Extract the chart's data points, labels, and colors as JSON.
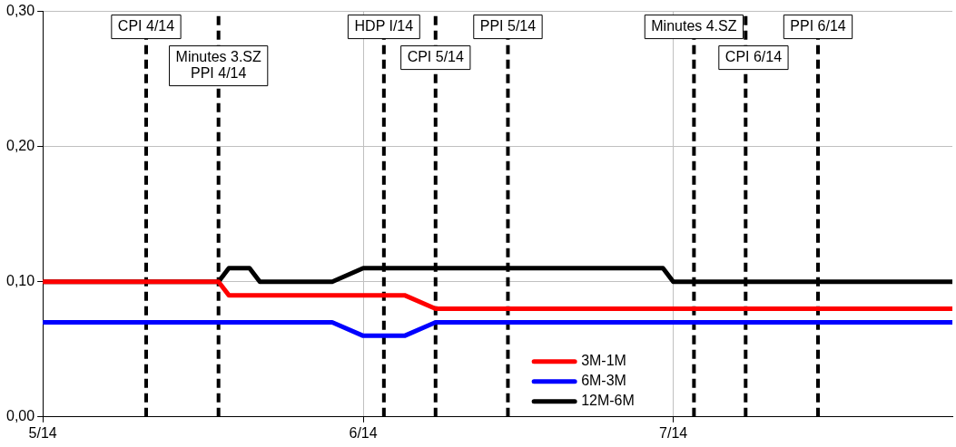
{
  "chart_data": {
    "type": "line",
    "xlim": [
      "2014-05-01",
      "2014-07-28"
    ],
    "xticks": [
      {
        "value": "2014-05-01",
        "label": "5/14"
      },
      {
        "value": "2014-06-01",
        "label": "6/14"
      },
      {
        "value": "2014-07-01",
        "label": "7/14"
      }
    ],
    "ylim": [
      0,
      0.3
    ],
    "yticks": [
      {
        "value": 0,
        "label": "0,00"
      },
      {
        "value": 0.1,
        "label": "0,10"
      },
      {
        "value": 0.2,
        "label": "0,20"
      },
      {
        "value": 0.3,
        "label": "0,30"
      }
    ],
    "grid": true,
    "legend": "bottom",
    "marker": "none",
    "line_style": "solid",
    "series": [
      {
        "name": "3M-1M",
        "color": "#ff0000",
        "x": [
          "2014-05-01",
          "2014-05-18",
          "2014-05-19",
          "2014-06-05",
          "2014-06-08",
          "2014-07-28"
        ],
        "values": [
          0.1,
          0.1,
          0.09,
          0.09,
          0.08,
          0.08
        ]
      },
      {
        "name": "6M-3M",
        "color": "#0000ff",
        "x": [
          "2014-05-01",
          "2014-05-29",
          "2014-06-01",
          "2014-06-05",
          "2014-06-08",
          "2014-07-28"
        ],
        "values": [
          0.07,
          0.07,
          0.06,
          0.06,
          0.07,
          0.07
        ]
      },
      {
        "name": "12M-6M",
        "color": "#000000",
        "x": [
          "2014-05-01",
          "2014-05-18",
          "2014-05-19",
          "2014-05-21",
          "2014-05-22",
          "2014-05-29",
          "2014-06-01",
          "2014-06-30",
          "2014-07-01",
          "2014-07-28"
        ],
        "values": [
          0.1,
          0.1,
          0.11,
          0.11,
          0.1,
          0.1,
          0.11,
          0.11,
          0.1,
          0.1
        ]
      }
    ],
    "ref_lines": [
      {
        "axis": "x",
        "value": "2014-05-11",
        "label": "CPI 4/14",
        "color": "#000000",
        "line_style": "dashed"
      },
      {
        "axis": "x",
        "value": "2014-05-18",
        "label": "Minutes 3.SZ\nPPI 4/14",
        "color": "#000000",
        "line_style": "dashed"
      },
      {
        "axis": "x",
        "value": "2014-06-03",
        "label": "HDP I/14",
        "color": "#000000",
        "line_style": "dashed"
      },
      {
        "axis": "x",
        "value": "2014-06-08",
        "label": "CPI 5/14",
        "color": "#000000",
        "line_style": "dashed"
      },
      {
        "axis": "x",
        "value": "2014-06-15",
        "label": "PPI 5/14",
        "color": "#000000",
        "line_style": "dashed"
      },
      {
        "axis": "x",
        "value": "2014-07-03",
        "label": "Minutes 4.SZ",
        "color": "#000000",
        "line_style": "dashed"
      },
      {
        "axis": "x",
        "value": "2014-07-08",
        "label": "CPI 6/14",
        "color": "#000000",
        "line_style": "dashed"
      },
      {
        "axis": "x",
        "value": "2014-07-15",
        "label": "PPI 6/14",
        "color": "#000000",
        "line_style": "dashed"
      }
    ]
  }
}
